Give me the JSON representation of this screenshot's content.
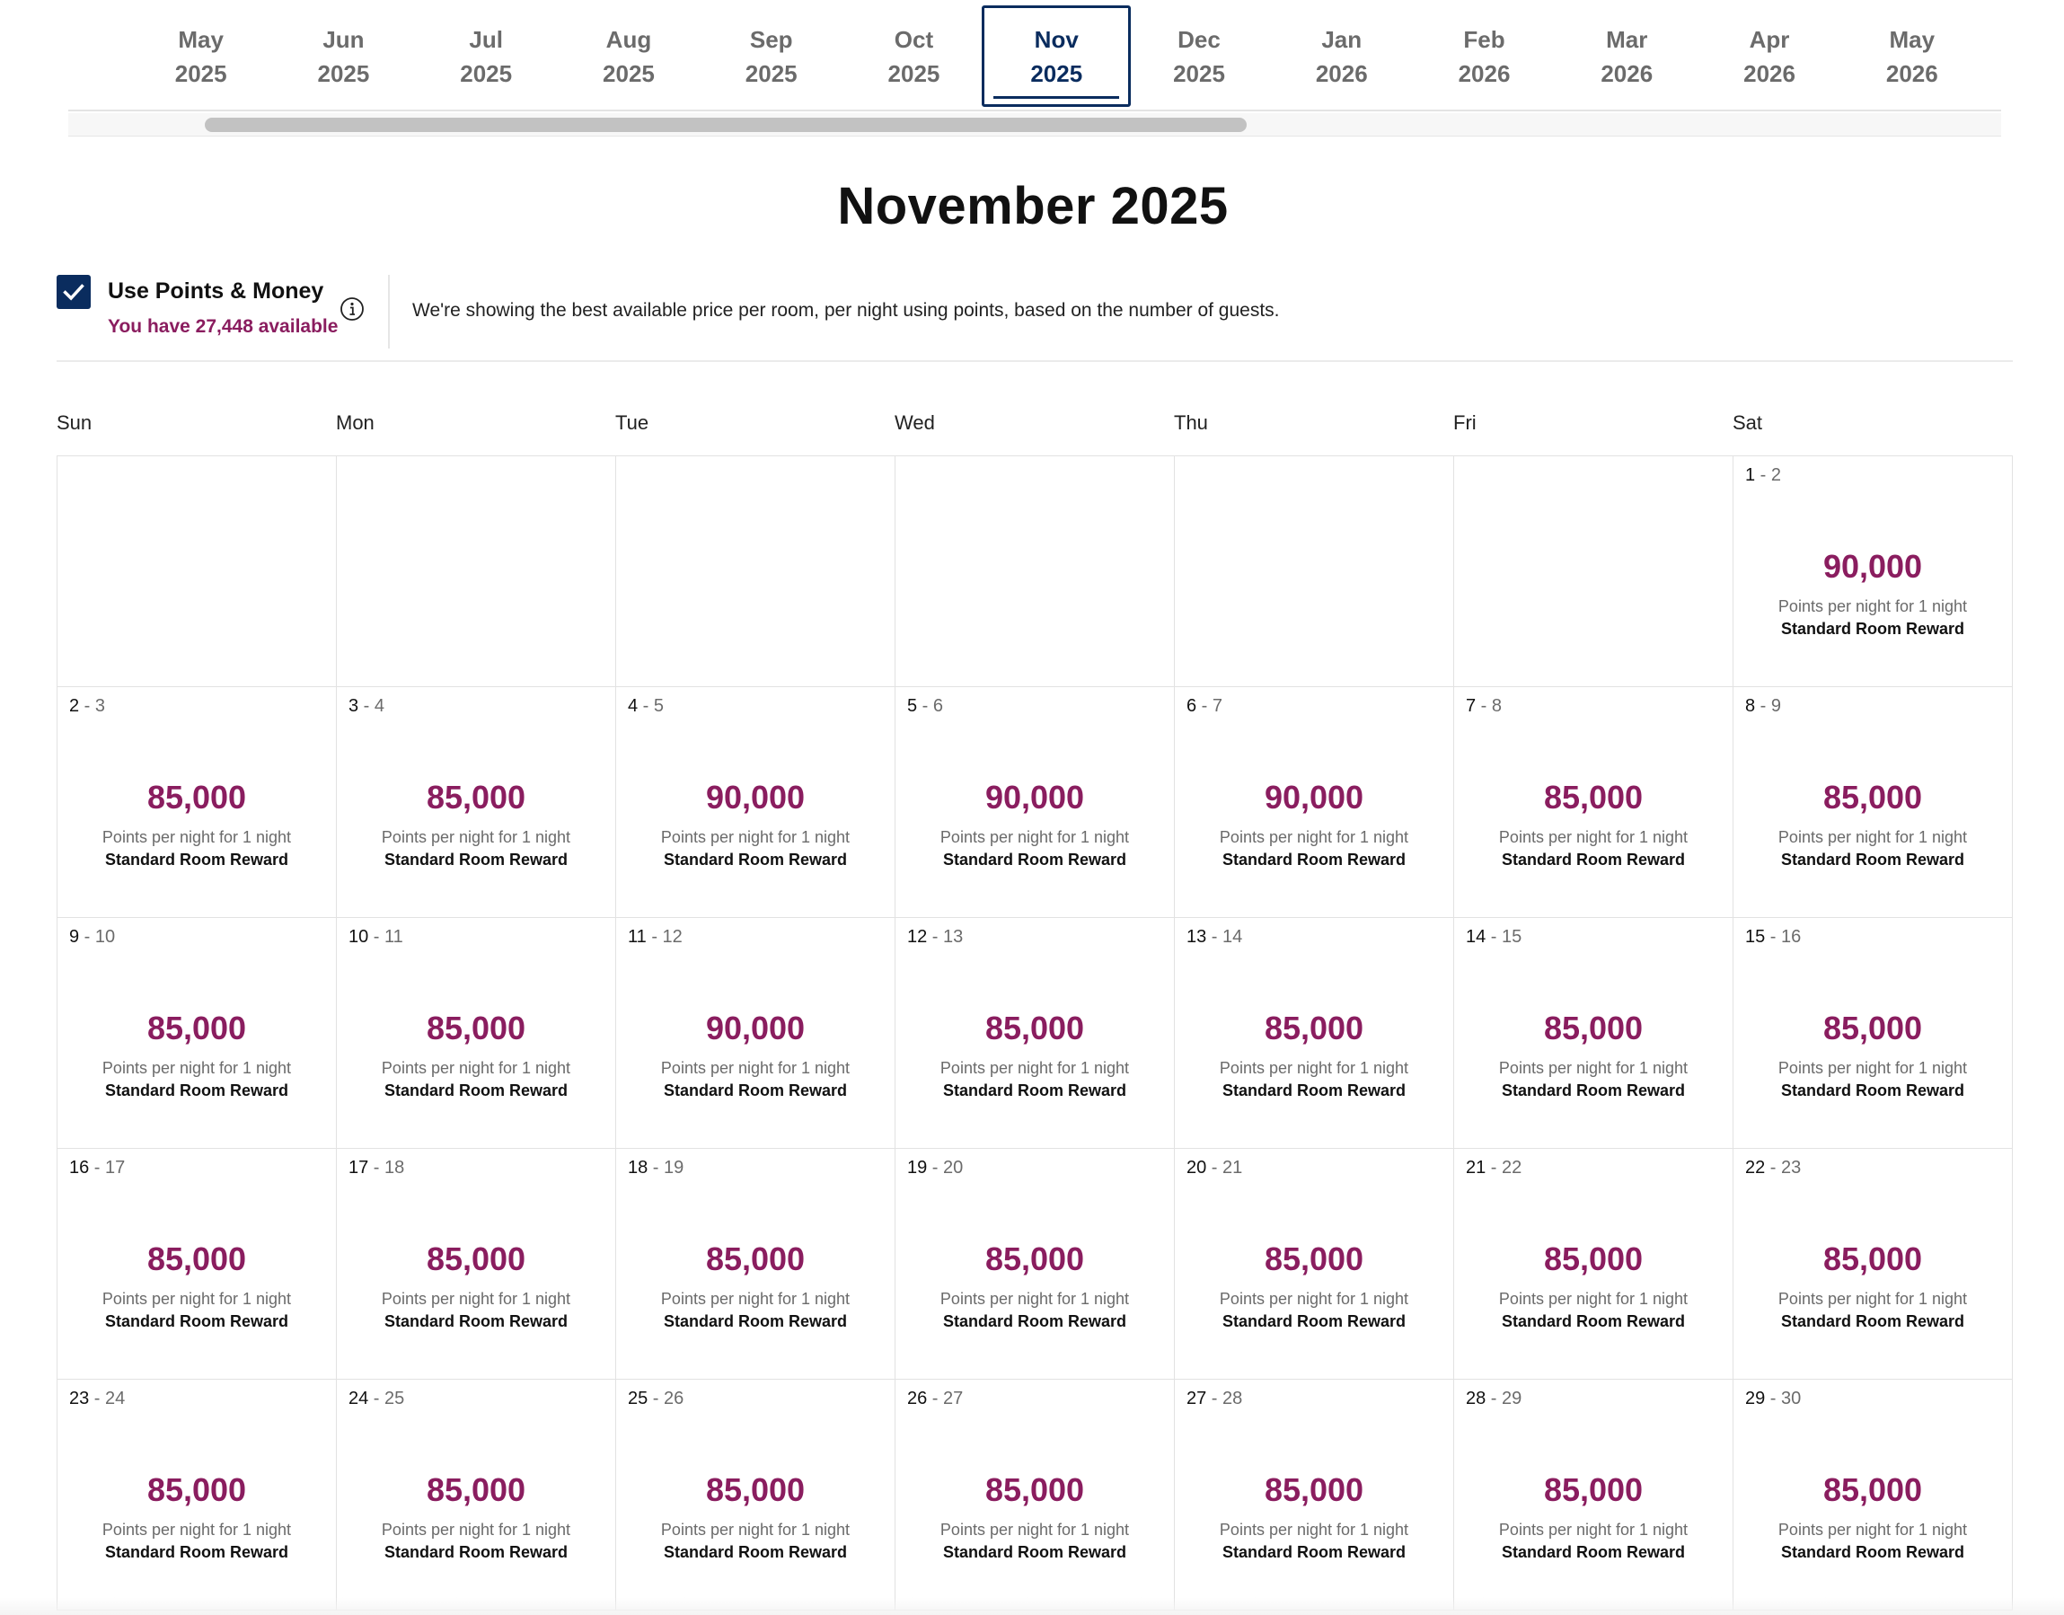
{
  "months": [
    {
      "m": "May",
      "y": "2025"
    },
    {
      "m": "Jun",
      "y": "2025"
    },
    {
      "m": "Jul",
      "y": "2025"
    },
    {
      "m": "Aug",
      "y": "2025"
    },
    {
      "m": "Sep",
      "y": "2025"
    },
    {
      "m": "Oct",
      "y": "2025"
    },
    {
      "m": "Nov",
      "y": "2025"
    },
    {
      "m": "Dec",
      "y": "2025"
    },
    {
      "m": "Jan",
      "y": "2026"
    },
    {
      "m": "Feb",
      "y": "2026"
    },
    {
      "m": "Mar",
      "y": "2026"
    },
    {
      "m": "Apr",
      "y": "2026"
    },
    {
      "m": "May",
      "y": "2026"
    }
  ],
  "active_month_index": 6,
  "title": "November 2025",
  "points": {
    "checked": true,
    "label": "Use Points & Money",
    "available": "You have 27,448 available",
    "description": "We're showing the best available price per room, per night using points, based on the number of guests."
  },
  "weekdays": [
    "Sun",
    "Mon",
    "Tue",
    "Wed",
    "Thu",
    "Fri",
    "Sat"
  ],
  "per_night_label": "Points per night for 1 night",
  "reward_label": "Standard Room Reward",
  "colors": {
    "accent": "#8a1d5f",
    "navy": "#0a2c5e"
  },
  "weeks": [
    [
      null,
      null,
      null,
      null,
      null,
      null,
      {
        "start": "1",
        "end": "2",
        "price": "90,000"
      }
    ],
    [
      {
        "start": "2",
        "end": "3",
        "price": "85,000"
      },
      {
        "start": "3",
        "end": "4",
        "price": "85,000"
      },
      {
        "start": "4",
        "end": "5",
        "price": "90,000"
      },
      {
        "start": "5",
        "end": "6",
        "price": "90,000"
      },
      {
        "start": "6",
        "end": "7",
        "price": "90,000"
      },
      {
        "start": "7",
        "end": "8",
        "price": "85,000"
      },
      {
        "start": "8",
        "end": "9",
        "price": "85,000"
      }
    ],
    [
      {
        "start": "9",
        "end": "10",
        "price": "85,000"
      },
      {
        "start": "10",
        "end": "11",
        "price": "85,000"
      },
      {
        "start": "11",
        "end": "12",
        "price": "90,000"
      },
      {
        "start": "12",
        "end": "13",
        "price": "85,000"
      },
      {
        "start": "13",
        "end": "14",
        "price": "85,000"
      },
      {
        "start": "14",
        "end": "15",
        "price": "85,000"
      },
      {
        "start": "15",
        "end": "16",
        "price": "85,000"
      }
    ],
    [
      {
        "start": "16",
        "end": "17",
        "price": "85,000"
      },
      {
        "start": "17",
        "end": "18",
        "price": "85,000"
      },
      {
        "start": "18",
        "end": "19",
        "price": "85,000"
      },
      {
        "start": "19",
        "end": "20",
        "price": "85,000"
      },
      {
        "start": "20",
        "end": "21",
        "price": "85,000"
      },
      {
        "start": "21",
        "end": "22",
        "price": "85,000"
      },
      {
        "start": "22",
        "end": "23",
        "price": "85,000"
      }
    ],
    [
      {
        "start": "23",
        "end": "24",
        "price": "85,000"
      },
      {
        "start": "24",
        "end": "25",
        "price": "85,000"
      },
      {
        "start": "25",
        "end": "26",
        "price": "85,000"
      },
      {
        "start": "26",
        "end": "27",
        "price": "85,000"
      },
      {
        "start": "27",
        "end": "28",
        "price": "85,000"
      },
      {
        "start": "28",
        "end": "29",
        "price": "85,000"
      },
      {
        "start": "29",
        "end": "30",
        "price": "85,000"
      }
    ]
  ]
}
